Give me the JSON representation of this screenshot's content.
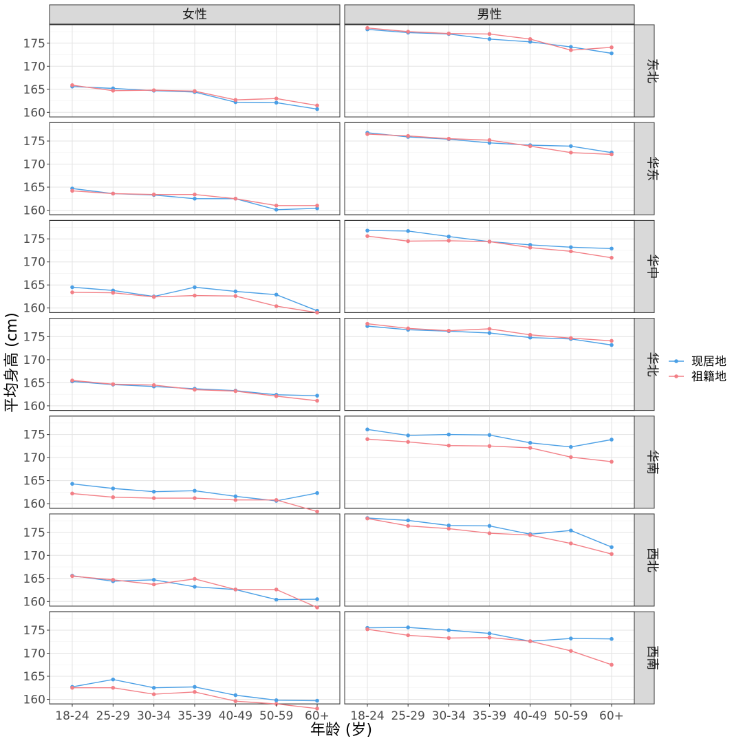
{
  "chart_data": {
    "type": "line",
    "xlabel": "年龄 (岁)",
    "ylabel": "平均身高 (cm)",
    "categories": [
      "18-24",
      "25-29",
      "30-34",
      "35-39",
      "40-49",
      "50-59",
      "60+"
    ],
    "column_facets": [
      "女性",
      "男性"
    ],
    "row_facets": [
      "东北",
      "华东",
      "华中",
      "华北",
      "华南",
      "西北",
      "西南"
    ],
    "yticks": [
      160,
      165,
      170,
      175
    ],
    "ylim": [
      159,
      179
    ],
    "legend": {
      "position": "right",
      "entries": [
        "现居地",
        "祖籍地"
      ]
    },
    "colors": {
      "现居地": "#4a9fe5",
      "祖籍地": "#f27f86"
    },
    "grid": true,
    "panels": [
      {
        "row": "东北",
        "col": "女性",
        "series": [
          {
            "name": "现居地",
            "values": [
              165.6,
              165.2,
              164.7,
              164.4,
              162.2,
              162.1,
              160.7
            ]
          },
          {
            "name": "祖籍地",
            "values": [
              165.9,
              164.7,
              164.8,
              164.6,
              162.7,
              163.0,
              161.5
            ]
          }
        ]
      },
      {
        "row": "东北",
        "col": "男性",
        "series": [
          {
            "name": "现居地",
            "values": [
              178.0,
              177.3,
              177.0,
              175.9,
              175.3,
              174.2,
              172.8
            ]
          },
          {
            "name": "祖籍地",
            "values": [
              178.3,
              177.5,
              177.1,
              177.0,
              175.9,
              173.5,
              174.1
            ]
          }
        ]
      },
      {
        "row": "华东",
        "col": "女性",
        "series": [
          {
            "name": "现居地",
            "values": [
              164.7,
              163.6,
              163.3,
              162.5,
              162.5,
              160.1,
              160.4
            ]
          },
          {
            "name": "祖籍地",
            "values": [
              164.2,
              163.6,
              163.4,
              163.4,
              162.5,
              161.0,
              161.0
            ]
          }
        ]
      },
      {
        "row": "华东",
        "col": "男性",
        "series": [
          {
            "name": "现居地",
            "values": [
              176.8,
              175.9,
              175.4,
              174.6,
              174.1,
              173.9,
              172.5
            ]
          },
          {
            "name": "祖籍地",
            "values": [
              176.5,
              176.1,
              175.5,
              175.2,
              173.9,
              172.5,
              172.1
            ]
          }
        ]
      },
      {
        "row": "华中",
        "col": "女性",
        "series": [
          {
            "name": "现居地",
            "values": [
              164.5,
              163.8,
              162.5,
              164.5,
              163.6,
              162.9,
              159.4
            ]
          },
          {
            "name": "祖籍地",
            "values": [
              163.4,
              163.3,
              162.4,
              162.7,
              162.6,
              160.4,
              159.0
            ]
          }
        ]
      },
      {
        "row": "华中",
        "col": "男性",
        "series": [
          {
            "name": "现居地",
            "values": [
              176.8,
              176.7,
              175.5,
              174.4,
              173.7,
              173.2,
              172.9
            ]
          },
          {
            "name": "祖籍地",
            "values": [
              175.6,
              174.5,
              174.6,
              174.4,
              173.1,
              172.3,
              170.9
            ]
          }
        ]
      },
      {
        "row": "华北",
        "col": "女性",
        "series": [
          {
            "name": "现居地",
            "values": [
              165.3,
              164.6,
              164.2,
              163.7,
              163.3,
              162.4,
              162.2
            ]
          },
          {
            "name": "祖籍地",
            "values": [
              165.5,
              164.7,
              164.5,
              163.5,
              163.2,
              162.1,
              161.1
            ]
          }
        ]
      },
      {
        "row": "华北",
        "col": "男性",
        "series": [
          {
            "name": "现居地",
            "values": [
              177.3,
              176.5,
              176.2,
              175.8,
              174.8,
              174.5,
              173.2
            ]
          },
          {
            "name": "祖籍地",
            "values": [
              177.8,
              176.8,
              176.3,
              176.7,
              175.4,
              174.7,
              174.1
            ]
          }
        ]
      },
      {
        "row": "华南",
        "col": "女性",
        "series": [
          {
            "name": "现居地",
            "values": [
              164.3,
              163.3,
              162.6,
              162.8,
              161.6,
              160.6,
              162.3
            ]
          },
          {
            "name": "祖籍地",
            "values": [
              162.2,
              161.4,
              161.2,
              161.2,
              160.8,
              160.8,
              158.3
            ]
          }
        ]
      },
      {
        "row": "华南",
        "col": "男性",
        "series": [
          {
            "name": "现居地",
            "values": [
              176.1,
              174.8,
              175.0,
              174.9,
              173.2,
              172.3,
              173.9
            ]
          },
          {
            "name": "祖籍地",
            "values": [
              174.0,
              173.4,
              172.6,
              172.5,
              172.1,
              170.1,
              169.1
            ]
          }
        ]
      },
      {
        "row": "西北",
        "col": "女性",
        "series": [
          {
            "name": "现居地",
            "values": [
              165.6,
              164.4,
              164.7,
              163.2,
              162.6,
              160.4,
              160.5
            ]
          },
          {
            "name": "祖籍地",
            "values": [
              165.5,
              164.7,
              163.7,
              164.9,
              162.6,
              162.6,
              158.7
            ]
          }
        ]
      },
      {
        "row": "西北",
        "col": "男性",
        "series": [
          {
            "name": "现居地",
            "values": [
              178.1,
              177.6,
              176.5,
              176.4,
              174.6,
              175.4,
              171.8
            ]
          },
          {
            "name": "祖籍地",
            "values": [
              178.0,
              176.4,
              175.8,
              174.8,
              174.4,
              172.6,
              170.3
            ]
          }
        ]
      },
      {
        "row": "西南",
        "col": "女性",
        "series": [
          {
            "name": "现居地",
            "values": [
              162.7,
              164.3,
              162.5,
              162.7,
              160.9,
              159.8,
              159.7
            ]
          },
          {
            "name": "祖籍地",
            "values": [
              162.5,
              162.5,
              161.1,
              161.6,
              159.6,
              159.0,
              158.0
            ]
          }
        ]
      },
      {
        "row": "西南",
        "col": "男性",
        "series": [
          {
            "name": "现居地",
            "values": [
              175.5,
              175.6,
              175.0,
              174.3,
              172.6,
              173.2,
              173.1
            ]
          },
          {
            "name": "祖籍地",
            "values": [
              175.2,
              173.9,
              173.3,
              173.4,
              172.6,
              170.5,
              167.5
            ]
          }
        ]
      }
    ]
  }
}
